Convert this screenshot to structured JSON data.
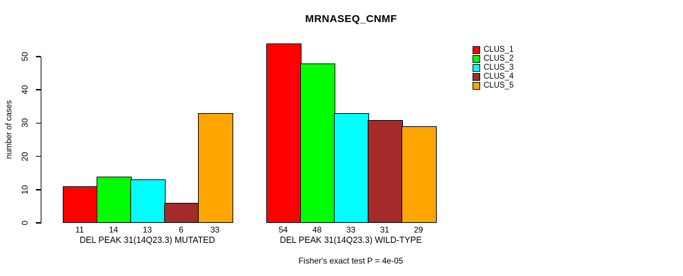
{
  "chart_data": {
    "type": "bar",
    "title": "MRNASEQ_CNMF",
    "xlabel": "",
    "ylabel": "number of cases",
    "ylim": [
      0,
      50
    ],
    "yticks": [
      0,
      10,
      20,
      30,
      40,
      50
    ],
    "grid": false,
    "legend_position": "right",
    "categories": [
      "DEL PEAK 31(14Q23.3) MUTATED",
      "DEL PEAK 31(14Q23.3) WILD-TYPE"
    ],
    "series": [
      {
        "name": "CLUS_1",
        "color": "#FF0000",
        "values": [
          11,
          54
        ]
      },
      {
        "name": "CLUS_2",
        "color": "#00FF00",
        "values": [
          14,
          48
        ]
      },
      {
        "name": "CLUS_3",
        "color": "#00FFFF",
        "values": [
          13,
          33
        ]
      },
      {
        "name": "CLUS_4",
        "color": "#A52A2A",
        "values": [
          6,
          31
        ]
      },
      {
        "name": "CLUS_5",
        "color": "#FFA500",
        "values": [
          33,
          29
        ]
      }
    ],
    "bar_value_labels": true,
    "annotation": "Fisher's exact test P = 4e-05",
    "colors": {
      "bar_border": "#000000",
      "axis": "#000000",
      "background": "#ffffff"
    }
  }
}
